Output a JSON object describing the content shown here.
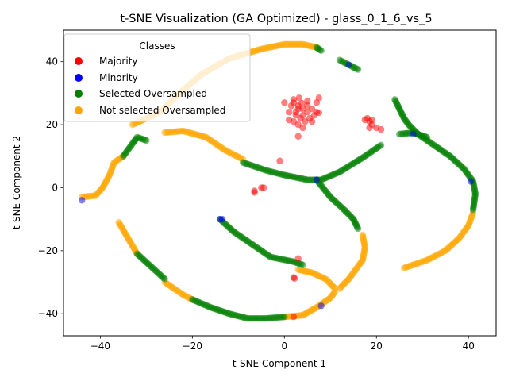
{
  "chart_data": {
    "type": "scatter",
    "title": "t-SNE Visualization (GA Optimized) - glass_0_1_6_vs_5",
    "xlabel": "t-SNE Component 1",
    "ylabel": "t-SNE Component 2",
    "xlim": [
      -48,
      46
    ],
    "ylim": [
      -47,
      50
    ],
    "xticks": [
      -40,
      -20,
      0,
      20,
      40
    ],
    "yticks": [
      -40,
      -20,
      0,
      20,
      40
    ],
    "grid": false,
    "legend": {
      "title": "Classes",
      "placement": "top-left",
      "entries": [
        {
          "label": "Majority",
          "color": "#ff0000"
        },
        {
          "label": "Minority",
          "color": "#0000ff"
        },
        {
          "label": "Selected Oversampled",
          "color": "#008000"
        },
        {
          "label": "Not selected Oversampled",
          "color": "#ffa500"
        }
      ]
    },
    "marker_alpha": 0.5,
    "series": [
      {
        "name": "Not selected Oversampled",
        "color": "#ffa500",
        "paths": [
          [
            [
              -44,
              -3
            ],
            [
              -41,
              -2.5
            ],
            [
              -39.5,
              0
            ],
            [
              -38,
              4
            ],
            [
              -37,
              8
            ],
            [
              -35,
              10
            ]
          ],
          [
            [
              -33,
              20
            ],
            [
              -27,
              24
            ],
            [
              -22,
              31
            ],
            [
              -18,
              36
            ],
            [
              -12,
              41
            ],
            [
              -5,
              44
            ],
            [
              0,
              45.5
            ],
            [
              4,
              45.5
            ],
            [
              7,
              44.5
            ]
          ],
          [
            [
              -26,
              17.5
            ],
            [
              -22,
              18
            ],
            [
              -17,
              16
            ],
            [
              -13,
              12
            ],
            [
              -9,
              9
            ]
          ],
          [
            [
              -36,
              -11
            ],
            [
              -34,
              -16
            ],
            [
              -32,
              -21
            ]
          ],
          [
            [
              -26,
              -30
            ],
            [
              -22,
              -34
            ],
            [
              -20,
              -35.5
            ]
          ],
          [
            [
              0,
              -41
            ],
            [
              4,
              -40.5
            ],
            [
              7,
              -38
            ],
            [
              10,
              -35
            ],
            [
              11,
              -33
            ]
          ],
          [
            [
              3,
              -26
            ],
            [
              6,
              -27
            ],
            [
              9,
              -29
            ],
            [
              11,
              -32
            ]
          ],
          [
            [
              17,
              -15
            ],
            [
              17.5,
              -19
            ],
            [
              17,
              -23
            ],
            [
              14,
              -29
            ],
            [
              12,
              -32
            ]
          ],
          [
            [
              26,
              -25.5
            ],
            [
              31,
              -23
            ],
            [
              35,
              -20
            ],
            [
              38,
              -16
            ],
            [
              40,
              -12
            ],
            [
              41,
              -8
            ]
          ]
        ]
      },
      {
        "name": "Selected Oversampled",
        "color": "#008000",
        "paths": [
          [
            [
              -35,
              10
            ],
            [
              -33,
              14
            ],
            [
              -32,
              16
            ],
            [
              -30,
              15
            ]
          ],
          [
            [
              7,
              44.5
            ],
            [
              8,
              43.5
            ]
          ],
          [
            [
              12,
              40.5
            ],
            [
              14,
              39
            ],
            [
              16,
              37.5
            ]
          ],
          [
            [
              -9,
              8
            ],
            [
              -4,
              5.5
            ],
            [
              0,
              4
            ],
            [
              5,
              2.5
            ],
            [
              8,
              2.5
            ],
            [
              12,
              5
            ],
            [
              17,
              9.5
            ],
            [
              21,
              13.5
            ]
          ],
          [
            [
              7,
              2.5
            ],
            [
              10,
              -3
            ],
            [
              13,
              -7
            ],
            [
              15,
              -10
            ],
            [
              16,
              -13
            ]
          ],
          [
            [
              -14,
              -10
            ],
            [
              -11,
              -14
            ],
            [
              -7,
              -18
            ],
            [
              -3,
              -22
            ],
            [
              2,
              -23.5
            ],
            [
              4,
              -24.5
            ]
          ],
          [
            [
              -32,
              -21
            ],
            [
              -29,
              -25
            ],
            [
              -26,
              -29
            ]
          ],
          [
            [
              -20,
              -35.5
            ],
            [
              -16,
              -38
            ],
            [
              -12,
              -40
            ],
            [
              -8,
              -41.5
            ],
            [
              -4,
              -41.5
            ],
            [
              0,
              -41
            ]
          ],
          [
            [
              24,
              28
            ],
            [
              25,
              25
            ],
            [
              26,
              22
            ],
            [
              27,
              20
            ],
            [
              29,
              17
            ],
            [
              33,
              13
            ],
            [
              36,
              10
            ],
            [
              39,
              6
            ],
            [
              41,
              2
            ],
            [
              41.5,
              -2
            ],
            [
              41,
              -7
            ]
          ],
          [
            [
              25,
              17
            ],
            [
              28,
              17.5
            ],
            [
              31,
              16
            ]
          ]
        ]
      },
      {
        "name": "Majority",
        "color": "#ff0000",
        "points": [
          [
            2,
            27
          ],
          [
            3,
            26
          ],
          [
            4,
            25
          ],
          [
            5,
            24
          ],
          [
            2.5,
            23
          ],
          [
            3.5,
            22
          ],
          [
            4.5,
            21
          ],
          [
            5.5,
            22
          ],
          [
            6,
            25
          ],
          [
            7,
            24
          ],
          [
            1,
            24
          ],
          [
            1.5,
            26
          ],
          [
            2,
            21
          ],
          [
            3,
            20
          ],
          [
            6,
            21
          ],
          [
            4,
            19
          ],
          [
            2,
            28
          ],
          [
            3.2,
            28.5
          ],
          [
            5,
            27.5
          ],
          [
            7,
            27
          ],
          [
            0,
            27
          ],
          [
            1,
            21.5
          ],
          [
            3,
            25
          ],
          [
            4,
            23
          ],
          [
            5,
            26
          ],
          [
            2.5,
            24
          ],
          [
            3.8,
            26.8
          ],
          [
            6.5,
            23
          ],
          [
            7.5,
            28.5
          ],
          [
            3,
            16.3
          ],
          [
            7.5,
            23.8
          ],
          [
            18,
            22
          ],
          [
            19,
            21.5
          ],
          [
            19,
            20
          ],
          [
            18.5,
            19
          ],
          [
            20,
            19
          ],
          [
            21,
            18.5
          ],
          [
            18.5,
            21
          ],
          [
            17.5,
            21.5
          ],
          [
            -6.5,
            -1
          ],
          [
            -6.5,
            -1.5
          ],
          [
            -5,
            0
          ],
          [
            -4.5,
            0
          ],
          [
            -1,
            8.5
          ],
          [
            3,
            -22.5
          ],
          [
            2,
            -28.5
          ],
          [
            2.2,
            -28.8
          ],
          [
            2,
            -41
          ]
        ]
      },
      {
        "name": "Minority",
        "color": "#0000ff",
        "points": [
          [
            -44,
            -4
          ],
          [
            14,
            39
          ],
          [
            7,
            2.5
          ],
          [
            28,
            17
          ],
          [
            40.5,
            2
          ],
          [
            -14,
            -10
          ],
          [
            -13.5,
            -10
          ],
          [
            8,
            -37.5
          ]
        ]
      }
    ]
  }
}
